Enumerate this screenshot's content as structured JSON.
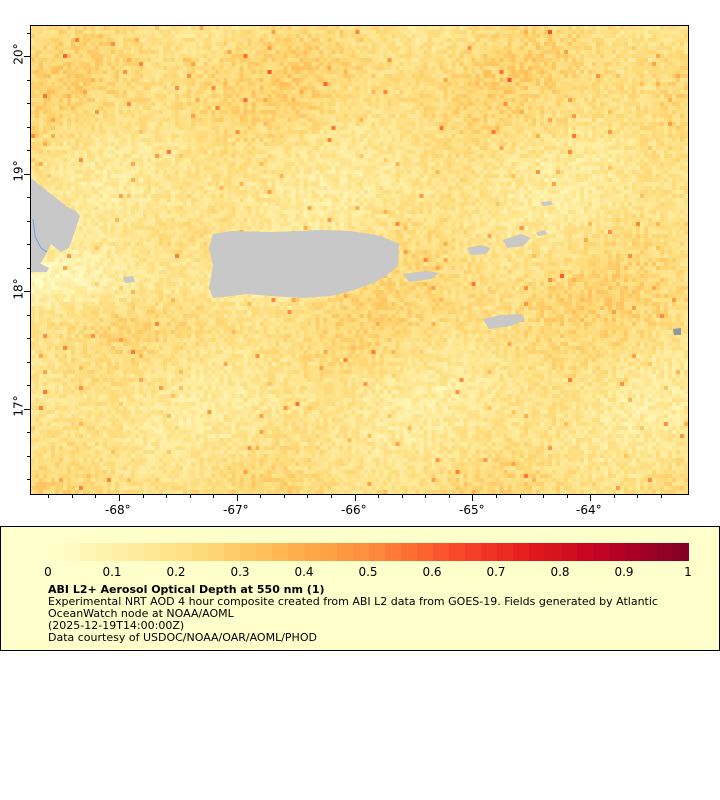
{
  "map": {
    "lat_ticks": [
      "20°",
      "19°",
      "18°",
      "17°"
    ],
    "lon_ticks": [
      "-68°",
      "-67°",
      "-66°",
      "-65°",
      "-64°"
    ],
    "land_color": "#c8c8c8",
    "lon_range": [
      -68.75,
      -63.17
    ],
    "lat_range": [
      16.28,
      20.26
    ]
  },
  "legend": {
    "colorbar_ticks": [
      "0",
      "0.1",
      "0.2",
      "0.3",
      "0.4",
      "0.5",
      "0.6",
      "0.7",
      "0.8",
      "0.9",
      "1"
    ],
    "colorbar_range": [
      0,
      1
    ],
    "colorbar_colors": [
      "#ffffcc",
      "#ffeda0",
      "#fed976",
      "#feb24c",
      "#fd8d3c",
      "#fc4e2a",
      "#e31a1c",
      "#bd0026",
      "#800026"
    ],
    "title": "ABI L2+ Aerosol Optical Depth at 550 nm (1)",
    "line1": "Experimental NRT AOD 4 hour composite created from ABI L2 data from GOES-19. Fields generated by Atlantic",
    "line2": "OceanWatch node at NOAA/AOML",
    "line3": "(2025-12-19T14:00:00Z)",
    "line4": "Data courtesy of USDOC/NOAA/OAR/AOML/PHOD"
  }
}
